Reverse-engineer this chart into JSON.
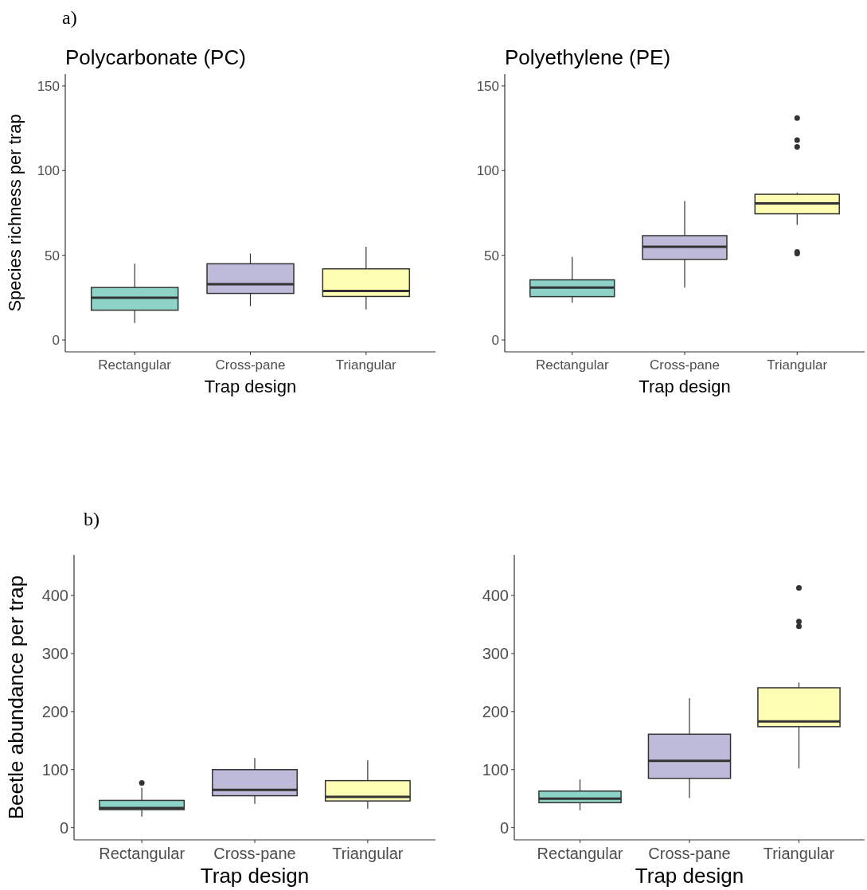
{
  "chart_data": [
    {
      "type": "box",
      "title": "Polycarbonate (PC)",
      "xlabel": "Trap design",
      "ylabel": "Species richness per trap",
      "annotations": [
        "a)"
      ],
      "categories": [
        "Rectangular",
        "Cross-pane",
        "Triangular"
      ],
      "colors": [
        "#8dd3c7",
        "#bebada",
        "#ffffb3"
      ],
      "ylim": [
        -7,
        157
      ],
      "yticks": [
        0,
        50,
        100,
        150
      ],
      "grid": false,
      "boxes": [
        {
          "low": 10,
          "q1": 17.6,
          "median": 25,
          "q3": 31,
          "high": 45
        },
        {
          "low": 20,
          "q1": 27.5,
          "median": 33,
          "q3": 45,
          "high": 51
        },
        {
          "low": 18,
          "q1": 25.7,
          "median": 29,
          "q3": 42,
          "high": 55
        }
      ]
    },
    {
      "type": "box",
      "title": "Polyethylene (PE)",
      "xlabel": "Trap design",
      "categories": [
        "Rectangular",
        "Cross-pane",
        "Triangular"
      ],
      "colors": [
        "#8dd3c7",
        "#bebada",
        "#ffffb3"
      ],
      "ylim": [
        -7,
        157
      ],
      "yticks": [
        0,
        50,
        100,
        150
      ],
      "grid": false,
      "boxes": [
        {
          "low": 22,
          "q1": 25.6,
          "median": 31,
          "q3": 35.5,
          "high": 49
        },
        {
          "low": 31,
          "q1": 47.6,
          "median": 55,
          "q3": 61.6,
          "high": 82
        },
        {
          "low": 68,
          "q1": 74.5,
          "median": 80.6,
          "q3": 86,
          "high": 87,
          "outliers": [
            131,
            118,
            114,
            52,
            51
          ]
        }
      ]
    },
    {
      "type": "box",
      "xlabel": "Trap design",
      "ylabel": "Beetle abundance per trap",
      "annotations": [
        "b)"
      ],
      "categories": [
        "Rectangular",
        "Cross-pane",
        "Triangular"
      ],
      "colors": [
        "#8dd3c7",
        "#bebada",
        "#ffffb3"
      ],
      "ylim": [
        -21,
        470
      ],
      "yticks": [
        0,
        100,
        200,
        300,
        400
      ],
      "grid": false,
      "boxes": [
        {
          "low": 19,
          "q1": 31,
          "median": 34,
          "q3": 47,
          "high": 69,
          "outliers": [
            77
          ]
        },
        {
          "low": 41,
          "q1": 55,
          "median": 65,
          "q3": 100,
          "high": 120
        },
        {
          "low": 33,
          "q1": 46,
          "median": 53,
          "q3": 81,
          "high": 116
        }
      ]
    },
    {
      "type": "box",
      "xlabel": "Trap design",
      "categories": [
        "Rectangular",
        "Cross-pane",
        "Triangular"
      ],
      "colors": [
        "#8dd3c7",
        "#bebada",
        "#ffffb3"
      ],
      "ylim": [
        -21,
        470
      ],
      "yticks": [
        0,
        100,
        200,
        300,
        400
      ],
      "grid": false,
      "boxes": [
        {
          "low": 30,
          "q1": 43,
          "median": 50,
          "q3": 63,
          "high": 83
        },
        {
          "low": 51,
          "q1": 85,
          "median": 115,
          "q3": 161,
          "high": 223
        },
        {
          "low": 102,
          "q1": 174,
          "median": 183,
          "q3": 241,
          "high": 250,
          "outliers": [
            413,
            355,
            347
          ]
        }
      ]
    }
  ]
}
